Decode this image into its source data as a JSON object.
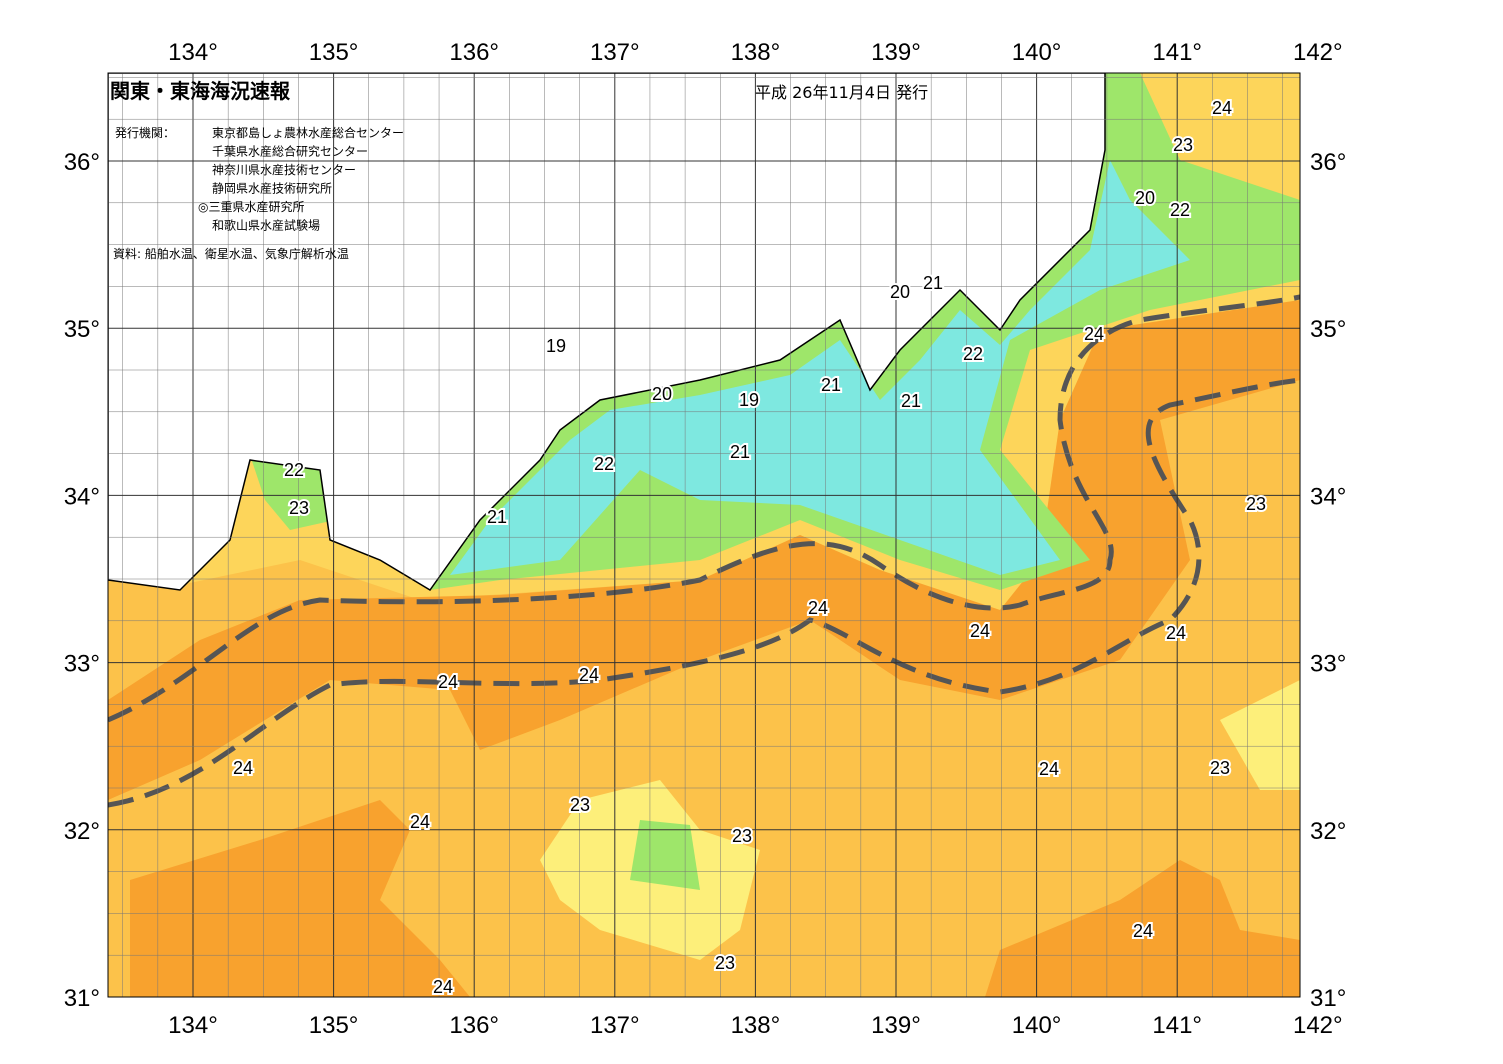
{
  "header": {
    "title": "関東・東海海況速報",
    "date": "平成 26年11月4日 発行",
    "agencies_label": "発行機関：",
    "agencies": [
      "東京都島しょ農林水産総合センター",
      "千葉県水産総合研究センター",
      "神奈川県水産技術センター",
      "静岡県水産技術研究所",
      "◎三重県水産研究所",
      "和歌山県水産試験場"
    ],
    "source": "資料: 船舶水温、衛星水温、気象庁解析水温"
  },
  "map": {
    "lon_ticks": [
      {
        "value": 134,
        "label": "134°"
      },
      {
        "value": 135,
        "label": "135°"
      },
      {
        "value": 136,
        "label": "136°"
      },
      {
        "value": 137,
        "label": "137°"
      },
      {
        "value": 138,
        "label": "138°"
      },
      {
        "value": 139,
        "label": "139°"
      },
      {
        "value": 140,
        "label": "140°"
      },
      {
        "value": 141,
        "label": "141°"
      },
      {
        "value": 142,
        "label": "142°"
      }
    ],
    "lat_ticks": [
      {
        "value": 31,
        "label": "31°"
      },
      {
        "value": 32,
        "label": "32°"
      },
      {
        "value": 33,
        "label": "33°"
      },
      {
        "value": 34,
        "label": "34°"
      },
      {
        "value": 35,
        "label": "35°"
      },
      {
        "value": 36,
        "label": "36°"
      }
    ],
    "contour_labels": [
      "24",
      "23",
      "20",
      "22",
      "20",
      "21",
      "19",
      "22",
      "24",
      "21",
      "20",
      "19",
      "21",
      "21",
      "22",
      "22",
      "23",
      "21",
      "23",
      "24",
      "24",
      "24",
      "24",
      "24",
      "24",
      "24",
      "23",
      "23",
      "24",
      "23",
      "24",
      "23",
      "24"
    ]
  }
}
